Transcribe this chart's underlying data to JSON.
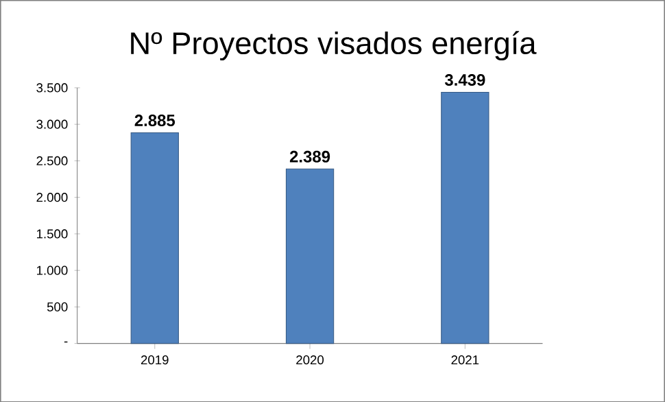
{
  "chart_data": {
    "type": "bar",
    "title": "Nº Proyectos visados energía",
    "categories": [
      "2019",
      "2020",
      "2021"
    ],
    "values": [
      2885,
      2389,
      3439
    ],
    "value_labels": [
      "2.885",
      "2.389",
      "3.439"
    ],
    "color": "#4f81bd",
    "ylim": [
      0,
      3500
    ],
    "yticks": [
      {
        "value": 0,
        "label": "-"
      },
      500,
      {
        "value": 1000,
        "label": "1.000"
      },
      {
        "value": 1500,
        "label": "1.500"
      },
      {
        "value": 2000,
        "label": "2.000"
      },
      {
        "value": 2500,
        "label": "2.500"
      },
      {
        "value": 3000,
        "label": "3.000"
      },
      {
        "value": 3500,
        "label": "3.500"
      }
    ]
  }
}
